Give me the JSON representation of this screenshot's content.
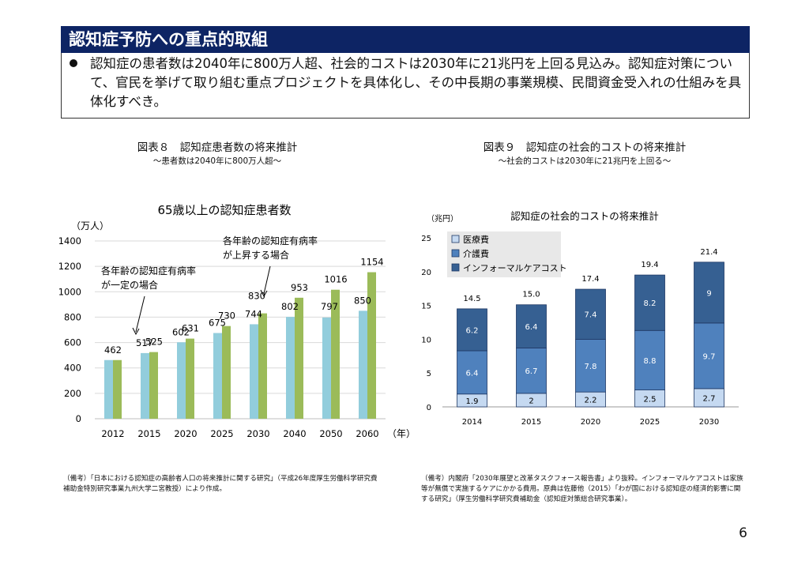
{
  "header": {
    "title": "認知症予防への重点的取組",
    "summary": "認知症の患者数は2040年に800万人超、社会的コストは2030年に21兆円を上回る見込み。認知症対策について、官民を挙げて取り組む重点プロジェクトを具体化し、その中長期の事業規模、民間資金受入れの仕組みを具体化すべき。"
  },
  "figure8": {
    "title": "図表８　認知症患者数の将来推計",
    "subtitle": "～患者数は2040年に800万人超～",
    "note": "（備考）「日本における認知症の高齢者人口の将来推計に関する研究」（平成26年度厚生労働科学研究費補助金特別研究事業九州大学二宮教授）により作成。"
  },
  "figure9": {
    "title": "図表９　認知症の社会的コストの将来推計",
    "subtitle": "～社会的コストは2030年に21兆円を上回る～",
    "note": "（備考）内閣府「2030年展望と改革タスクフォース報告書」より抜粋。インフォーマルケアコストは家族等が無償で実施するケアにかかる費用。原典は佐藤他（2015）「わが国における認知症の経済的影響に関する研究」（厚生労働科学研究費補助金（認知症対策総合研究事業）。"
  },
  "page_number": "6",
  "colors": {
    "title_bg": "#0d2464",
    "const_rate": "#92cddc",
    "rising_rate": "#9bbb59",
    "medical": "#c5d9f1",
    "care": "#4f81bd",
    "informal": "#366092"
  },
  "chart_data": [
    {
      "type": "bar",
      "title": "65歳以上の認知症患者数",
      "ylabel": "（万人）",
      "xlabel": "（年）",
      "ylim": [
        0,
        1400
      ],
      "yticks": [
        0,
        200,
        400,
        600,
        800,
        1000,
        1200,
        1400
      ],
      "categories": [
        "2012",
        "2015",
        "2020",
        "2025",
        "2030",
        "2040",
        "2050",
        "2060"
      ],
      "series": [
        {
          "name": "各年齢の認知症有病率が一定の場合",
          "values": [
            462,
            517,
            602,
            675,
            744,
            802,
            797,
            850
          ]
        },
        {
          "name": "各年齢の認知症有病率が上昇する場合",
          "values": [
            462,
            525,
            631,
            730,
            830,
            953,
            1016,
            1154
          ]
        }
      ],
      "annotations": [
        {
          "text": "各年齢の認知症有病率が一定の場合",
          "lines": [
            "各年齢の認知症有病率",
            "が一定の場合"
          ]
        },
        {
          "text": "各年齢の認知症有病率が上昇する場合",
          "lines": [
            "各年齢の認知症有病率",
            "が上昇する場合"
          ]
        }
      ],
      "grid": true
    },
    {
      "type": "bar",
      "stacked": true,
      "title": "認知症の社会的コストの将来推計",
      "ylabel": "（兆円）",
      "ylim": [
        0,
        25
      ],
      "yticks": [
        0,
        5,
        10,
        15,
        20,
        25
      ],
      "categories": [
        "2014",
        "2015",
        "2020",
        "2025",
        "2030"
      ],
      "series": [
        {
          "name": "医療費",
          "values": [
            1.9,
            2.0,
            2.2,
            2.5,
            2.7
          ]
        },
        {
          "name": "介護費",
          "values": [
            6.4,
            6.7,
            7.8,
            8.8,
            9.7
          ]
        },
        {
          "name": "インフォーマルケアコスト",
          "values": [
            6.2,
            6.4,
            7.4,
            8.2,
            9.0
          ]
        }
      ],
      "totals": [
        14.5,
        15.0,
        17.4,
        19.4,
        21.4
      ],
      "legend": "top-left",
      "grid": false
    }
  ]
}
